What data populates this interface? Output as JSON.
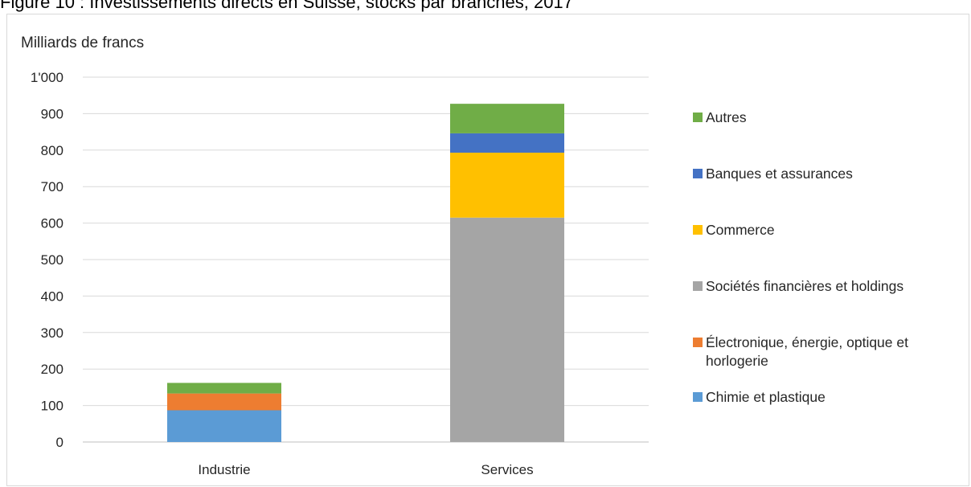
{
  "figure_title": "Figure 10 : Investissements directs en Suisse, stocks par branches, 2017",
  "chart_data": {
    "type": "bar",
    "stacked": true,
    "ylabel": "Milliards de francs",
    "xlabel": "",
    "ylim": [
      0,
      1000
    ],
    "yticks": [
      0,
      100,
      200,
      300,
      400,
      500,
      600,
      700,
      800,
      900,
      1000
    ],
    "ytick_labels": [
      "0",
      "100",
      "200",
      "300",
      "400",
      "500",
      "600",
      "700",
      "800",
      "900",
      "1'000"
    ],
    "categories": [
      "Industrie",
      "Services"
    ],
    "grid": true,
    "legend_position": "right",
    "series": [
      {
        "name": "Chimie et plastique",
        "color": "#5b9bd5",
        "values": [
          87,
          0
        ]
      },
      {
        "name": "Électronique, énergie, optique et horlogerie",
        "color": "#ed7d31",
        "values": [
          46,
          0
        ]
      },
      {
        "name": "Sociétés financières et holdings",
        "color": "#a5a5a5",
        "values": [
          0,
          615
        ]
      },
      {
        "name": "Commerce",
        "color": "#ffc000",
        "values": [
          0,
          178
        ]
      },
      {
        "name": "Banques et assurances",
        "color": "#4472c4",
        "values": [
          0,
          53
        ]
      },
      {
        "name": "Autres",
        "color": "#70ad47",
        "values": [
          29,
          81
        ]
      }
    ]
  }
}
